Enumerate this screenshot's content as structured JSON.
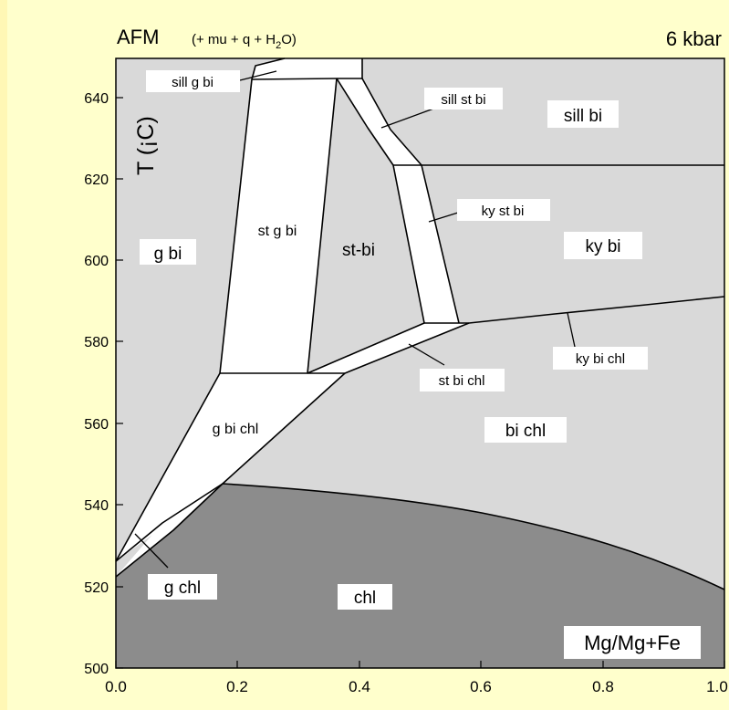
{
  "header": {
    "title": "AFM",
    "assemblage_prefix": "(+ mu + q + H",
    "assemblage_sub": "2",
    "assemblage_suffix": "O)",
    "pressure": "6 kbar"
  },
  "axes": {
    "ylabel": "T (¡C)",
    "xlabel_box": "Mg/Mg+Fe",
    "x_ticks": [
      "0.0",
      "0.2",
      "0.4",
      "0.6",
      "0.8",
      "1.0"
    ],
    "y_ticks": [
      "500",
      "520",
      "540",
      "560",
      "580",
      "600",
      "620",
      "640"
    ]
  },
  "fields": {
    "sill_g_bi": "sill g bi",
    "sill_st_bi": "sill st bi",
    "sill_bi": "sill bi",
    "st_g_bi": "st g bi",
    "g_bi": "g bi",
    "st_bi": "st-bi",
    "ky_st_bi": "ky st bi",
    "ky_bi": "ky bi",
    "ky_bi_chl": "ky bi chl",
    "st_bi_chl": "st bi chl",
    "g_bi_chl": "g bi chl",
    "bi_chl": "bi chl",
    "g_chl": "g chl",
    "chl": "chl"
  },
  "colors": {
    "background": "#ffffcc",
    "light_field": "#d9d9d9",
    "dark_field": "#8c8c8c",
    "narrow_field": "#ffffff"
  },
  "chart_data": {
    "type": "phase-diagram",
    "xlim": [
      0.0,
      1.0
    ],
    "ylim": [
      500,
      650
    ],
    "x_unit": "Mg/Mg+Fe",
    "y_unit": "T",
    "chl_out_curve": [
      [
        0.0,
        522
      ],
      [
        0.08,
        532
      ],
      [
        0.18,
        545.5
      ],
      [
        0.4,
        541.5
      ],
      [
        0.6,
        536
      ],
      [
        0.8,
        529
      ],
      [
        1.0,
        519
      ]
    ],
    "invariant_points": [
      [
        0.176,
        572.5
      ],
      [
        0.39,
        585
      ],
      [
        0.47,
        585
      ],
      [
        0.58,
        585
      ],
      [
        0.45,
        624
      ],
      [
        0.507,
        624
      ]
    ],
    "ky_sill_T": 624
  }
}
